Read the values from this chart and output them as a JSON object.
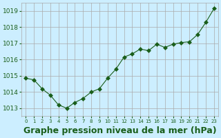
{
  "hours": [
    0,
    1,
    2,
    3,
    4,
    5,
    6,
    7,
    8,
    9,
    10,
    11,
    12,
    13,
    14,
    15,
    16,
    17,
    18,
    19,
    20,
    21,
    22,
    23
  ],
  "pressure": [
    1014.85,
    1014.75,
    1014.2,
    1013.8,
    1013.2,
    1013.0,
    1013.35,
    1013.6,
    1014.0,
    1014.2,
    1014.85,
    1015.4,
    1016.15,
    1016.35,
    1016.65,
    1016.55,
    1016.95,
    1016.75,
    1016.95,
    1017.05,
    1017.1,
    1017.55,
    1018.3,
    1019.15
  ],
  "line_color": "#1a5e1a",
  "marker": "D",
  "marker_size": 3,
  "background_color": "#cceeff",
  "grid_color": "#aaaaaa",
  "xlabel": "Graphe pression niveau de la mer (hPa)",
  "xlabel_color": "#1a5e1a",
  "xlabel_fontsize": 9,
  "tick_color": "#1a5e1a",
  "ylim": [
    1012.5,
    1019.5
  ],
  "yticks": [
    1013,
    1014,
    1015,
    1016,
    1017,
    1018,
    1019
  ],
  "xlim": [
    -0.5,
    23.5
  ]
}
